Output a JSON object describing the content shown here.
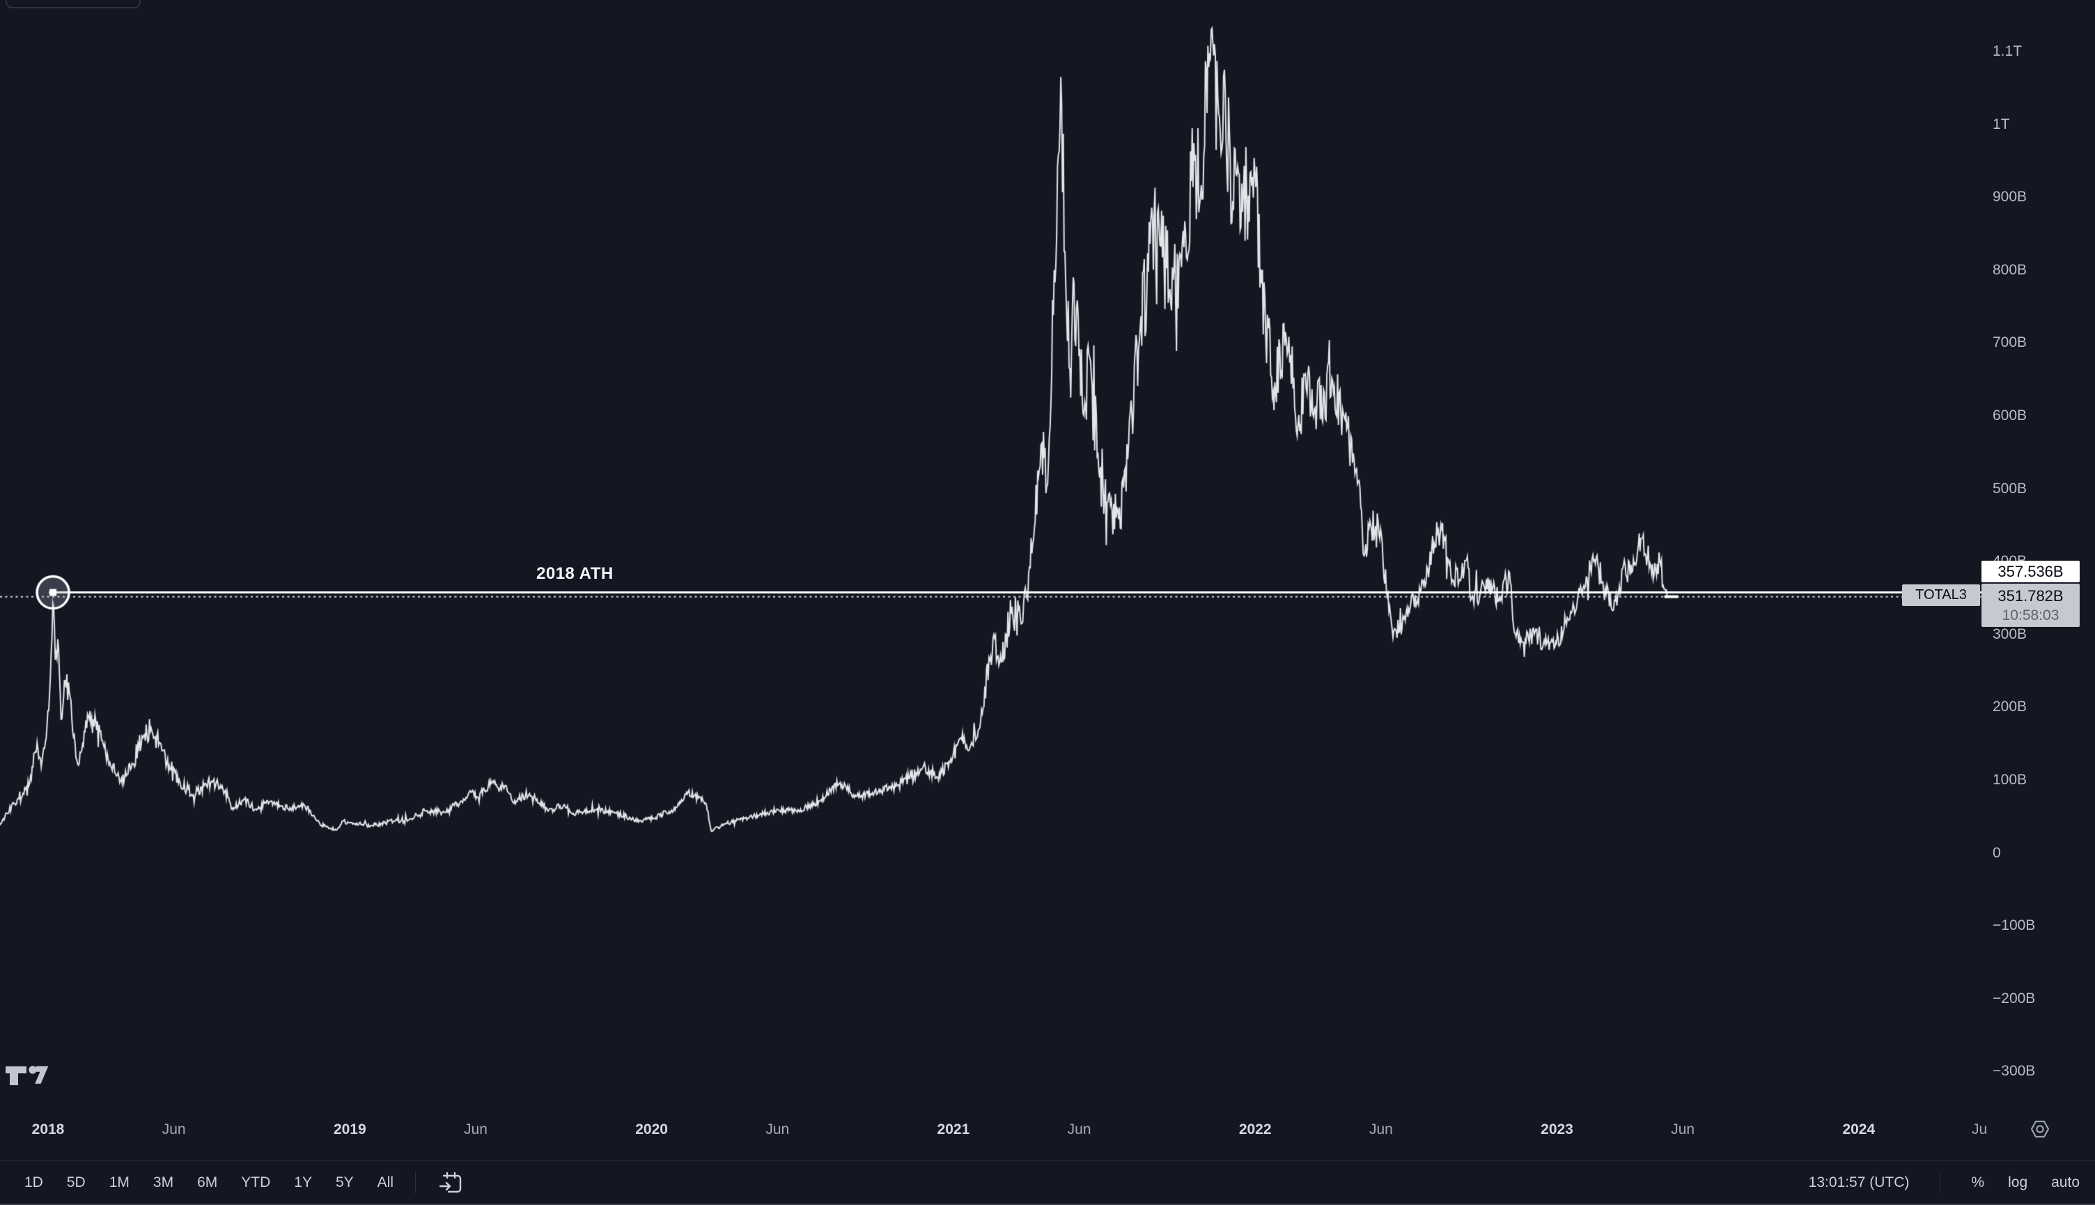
{
  "toolbar": {
    "ranges": [
      "1D",
      "5D",
      "1M",
      "3M",
      "6M",
      "YTD",
      "1Y",
      "5Y",
      "All"
    ],
    "goto_icon": "calendar-goto-icon",
    "clock": "13:01:57 (UTC)",
    "percent": "%",
    "log": "log",
    "auto": "auto"
  },
  "logo": "tradingview-logo",
  "colors": {
    "background": "#131722",
    "series_line": "#f0f2f6",
    "ath_line": "#ffffff",
    "dotted_price_line": "#d3d6de",
    "label_box_bg": "#c6c9d0",
    "ath_box_bg": "#ffffff",
    "box_text": "#0a0c12",
    "countdown_text": "#5f636e",
    "axis_text": "#b8bcc6",
    "axis_text_major": "#d6d9e0"
  },
  "chart_data": {
    "type": "line",
    "symbol": "TOTAL3",
    "title": "",
    "grid": false,
    "legend_position": "none",
    "y_axis": {
      "unit": "USD billions",
      "range": [
        -380,
        1180
      ],
      "ticks": [
        {
          "label": "1.1T",
          "value": 1100
        },
        {
          "label": "1T",
          "value": 1000
        },
        {
          "label": "900B",
          "value": 900
        },
        {
          "label": "800B",
          "value": 800
        },
        {
          "label": "700B",
          "value": 700
        },
        {
          "label": "600B",
          "value": 600
        },
        {
          "label": "500B",
          "value": 500
        },
        {
          "label": "400B",
          "value": 400
        },
        {
          "label": "300B",
          "value": 300
        },
        {
          "label": "200B",
          "value": 200
        },
        {
          "label": "100B",
          "value": 100
        },
        {
          "label": "0",
          "value": 0
        },
        {
          "label": "−100B",
          "value": -100
        },
        {
          "label": "−200B",
          "value": -200
        },
        {
          "label": "−300B",
          "value": -300
        }
      ]
    },
    "x_axis": {
      "ticks": [
        {
          "label": "2018",
          "t": 2018.0,
          "major": true
        },
        {
          "label": "Jun",
          "t": 2018.417,
          "major": false
        },
        {
          "label": "2019",
          "t": 2019.0,
          "major": true
        },
        {
          "label": "Jun",
          "t": 2019.417,
          "major": false
        },
        {
          "label": "2020",
          "t": 2020.0,
          "major": true
        },
        {
          "label": "Jun",
          "t": 2020.417,
          "major": false
        },
        {
          "label": "2021",
          "t": 2021.0,
          "major": true
        },
        {
          "label": "Jun",
          "t": 2021.417,
          "major": false
        },
        {
          "label": "2022",
          "t": 2022.0,
          "major": true
        },
        {
          "label": "Jun",
          "t": 2022.417,
          "major": false
        },
        {
          "label": "2023",
          "t": 2023.0,
          "major": true
        },
        {
          "label": "Jun",
          "t": 2023.417,
          "major": false
        },
        {
          "label": "2024",
          "t": 2024.0,
          "major": true
        },
        {
          "label": "Ju",
          "t": 2024.4,
          "major": false
        }
      ]
    },
    "annotations": {
      "ath_line": {
        "label": "2018 ATH",
        "value": 357.536,
        "price_label": "357.536B",
        "marker": "circle-on-2018-peak"
      },
      "last_price": {
        "symbol_label": "TOTAL3",
        "value": 351.782,
        "price_label": "351.782B",
        "countdown": "10:58:03"
      }
    },
    "series": [
      {
        "name": "TOTAL3",
        "unit": "USD billions",
        "points": [
          [
            "2017-11-04",
            38
          ],
          [
            "2017-11-12",
            55
          ],
          [
            "2017-11-22",
            68
          ],
          [
            "2017-12-02",
            82
          ],
          [
            "2017-12-10",
            96
          ],
          [
            "2017-12-19",
            152
          ],
          [
            "2017-12-24",
            118
          ],
          [
            "2017-12-29",
            152
          ],
          [
            "2018-01-03",
            220
          ],
          [
            "2018-01-07",
            352
          ],
          [
            "2018-01-10",
            258
          ],
          [
            "2018-01-13",
            300
          ],
          [
            "2018-01-17",
            178
          ],
          [
            "2018-01-21",
            242
          ],
          [
            "2018-01-28",
            212
          ],
          [
            "2018-02-06",
            120
          ],
          [
            "2018-02-19",
            188
          ],
          [
            "2018-03-05",
            165
          ],
          [
            "2018-03-18",
            118
          ],
          [
            "2018-03-30",
            98
          ],
          [
            "2018-04-12",
            118
          ],
          [
            "2018-04-25",
            160
          ],
          [
            "2018-05-06",
            172
          ],
          [
            "2018-05-20",
            140
          ],
          [
            "2018-05-29",
            112
          ],
          [
            "2018-06-09",
            100
          ],
          [
            "2018-06-24",
            80
          ],
          [
            "2018-07-18",
            98
          ],
          [
            "2018-07-31",
            92
          ],
          [
            "2018-08-11",
            60
          ],
          [
            "2018-08-26",
            74
          ],
          [
            "2018-09-09",
            60
          ],
          [
            "2018-09-21",
            70
          ],
          [
            "2018-10-11",
            64
          ],
          [
            "2018-10-29",
            62
          ],
          [
            "2018-11-07",
            66
          ],
          [
            "2018-11-20",
            48
          ],
          [
            "2018-11-26",
            40
          ],
          [
            "2018-12-08",
            34
          ],
          [
            "2018-12-16",
            31
          ],
          [
            "2018-12-24",
            44
          ],
          [
            "2019-01-06",
            40
          ],
          [
            "2019-01-28",
            38
          ],
          [
            "2019-02-24",
            44
          ],
          [
            "2019-03-16",
            47
          ],
          [
            "2019-04-03",
            58
          ],
          [
            "2019-04-24",
            56
          ],
          [
            "2019-05-16",
            70
          ],
          [
            "2019-05-28",
            84
          ],
          [
            "2019-06-04",
            76
          ],
          [
            "2019-06-22",
            97
          ],
          [
            "2019-07-01",
            86
          ],
          [
            "2019-07-09",
            94
          ],
          [
            "2019-07-17",
            70
          ],
          [
            "2019-08-06",
            82
          ],
          [
            "2019-08-29",
            58
          ],
          [
            "2019-09-18",
            66
          ],
          [
            "2019-09-27",
            54
          ],
          [
            "2019-10-26",
            60
          ],
          [
            "2019-11-16",
            56
          ],
          [
            "2019-12-18",
            44
          ],
          [
            "2020-01-03",
            48
          ],
          [
            "2020-01-31",
            62
          ],
          [
            "2020-02-14",
            84
          ],
          [
            "2020-03-07",
            68
          ],
          [
            "2020-03-13",
            30
          ],
          [
            "2020-03-29",
            40
          ],
          [
            "2020-04-23",
            48
          ],
          [
            "2020-05-10",
            52
          ],
          [
            "2020-06-02",
            60
          ],
          [
            "2020-06-27",
            58
          ],
          [
            "2020-07-23",
            72
          ],
          [
            "2020-08-15",
            96
          ],
          [
            "2020-09-05",
            78
          ],
          [
            "2020-09-24",
            82
          ],
          [
            "2020-10-25",
            92
          ],
          [
            "2020-11-24",
            118
          ],
          [
            "2020-12-11",
            105
          ],
          [
            "2020-12-27",
            124
          ],
          [
            "2021-01-10",
            158
          ],
          [
            "2021-01-22",
            148
          ],
          [
            "2021-02-01",
            170
          ],
          [
            "2021-02-19",
            300
          ],
          [
            "2021-02-26",
            262
          ],
          [
            "2021-03-13",
            338
          ],
          [
            "2021-03-25",
            315
          ],
          [
            "2021-04-08",
            430
          ],
          [
            "2021-04-17",
            560
          ],
          [
            "2021-04-25",
            505
          ],
          [
            "2021-05-11",
            1065
          ],
          [
            "2021-05-17",
            780
          ],
          [
            "2021-05-23",
            625
          ],
          [
            "2021-05-26",
            790
          ],
          [
            "2021-06-08",
            600
          ],
          [
            "2021-06-15",
            680
          ],
          [
            "2021-06-26",
            525
          ],
          [
            "2021-07-20",
            458
          ],
          [
            "2021-08-01",
            560
          ],
          [
            "2021-08-15",
            720
          ],
          [
            "2021-09-06",
            885
          ],
          [
            "2021-09-21",
            755
          ],
          [
            "2021-10-03",
            820
          ],
          [
            "2021-10-20",
            950
          ],
          [
            "2021-10-27",
            900
          ],
          [
            "2021-11-09",
            1130
          ],
          [
            "2021-11-18",
            1015
          ],
          [
            "2021-11-25",
            1075
          ],
          [
            "2021-12-04",
            865
          ],
          [
            "2021-12-10",
            930
          ],
          [
            "2021-12-17",
            880
          ],
          [
            "2021-12-27",
            935
          ],
          [
            "2022-01-08",
            800
          ],
          [
            "2022-01-22",
            625
          ],
          [
            "2022-02-07",
            720
          ],
          [
            "2022-02-24",
            580
          ],
          [
            "2022-03-02",
            660
          ],
          [
            "2022-03-14",
            605
          ],
          [
            "2022-04-05",
            645
          ],
          [
            "2022-04-18",
            600
          ],
          [
            "2022-04-30",
            545
          ],
          [
            "2022-05-08",
            500
          ],
          [
            "2022-05-12",
            405
          ],
          [
            "2022-05-20",
            455
          ],
          [
            "2022-05-31",
            440
          ],
          [
            "2022-06-14",
            325
          ],
          [
            "2022-06-19",
            305
          ],
          [
            "2022-07-03",
            330
          ],
          [
            "2022-07-20",
            360
          ],
          [
            "2022-08-14",
            452
          ],
          [
            "2022-08-28",
            372
          ],
          [
            "2022-09-12",
            400
          ],
          [
            "2022-09-21",
            350
          ],
          [
            "2022-10-05",
            368
          ],
          [
            "2022-10-25",
            345
          ],
          [
            "2022-11-05",
            388
          ],
          [
            "2022-11-10",
            308
          ],
          [
            "2022-11-21",
            288
          ],
          [
            "2022-12-05",
            302
          ],
          [
            "2022-12-17",
            290
          ],
          [
            "2022-12-30",
            284
          ],
          [
            "2023-01-14",
            322
          ],
          [
            "2023-01-29",
            362
          ],
          [
            "2023-02-16",
            402
          ],
          [
            "2023-02-25",
            372
          ],
          [
            "2023-03-10",
            334
          ],
          [
            "2023-03-22",
            392
          ],
          [
            "2023-04-02",
            386
          ],
          [
            "2023-04-14",
            432
          ],
          [
            "2023-04-24",
            392
          ],
          [
            "2023-05-06",
            402
          ],
          [
            "2023-05-12",
            358
          ],
          [
            "2023-05-16",
            351.782
          ]
        ]
      }
    ]
  }
}
